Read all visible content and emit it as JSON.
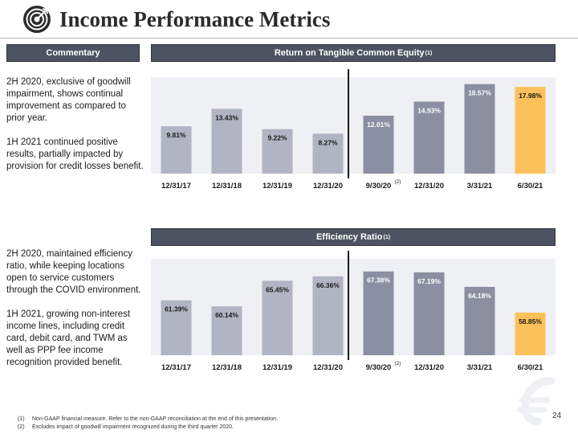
{
  "header": {
    "title": "Income Performance Metrics"
  },
  "commentary": {
    "label": "Commentary",
    "block1": [
      "2H 2020, exclusive of goodwill impairment, shows continual improvement as compared to prior year.",
      "1H 2021 continued positive results, partially impacted by provision for credit losses benefit."
    ],
    "block2": [
      "2H 2020, maintained efficiency ratio, while keeping locations open to service customers through the COVID environment.",
      "1H 2021, growing non-interest income lines, including credit card, debit card, and TWM as well as PPP fee income recognition provided benefit."
    ]
  },
  "colors": {
    "header_bg": "#4d5360",
    "bar_annual": "#b1b4c2",
    "bar_quarter": "#8b8fa1",
    "bar_highlight": "#fdc15c",
    "plot_bg": "#eef0f4",
    "divider": "#1a1a1a"
  },
  "chart_data": [
    {
      "type": "bar",
      "title": "Return on Tangible Common Equity",
      "title_sup": "(1)",
      "categories": [
        "12/31/17",
        "12/31/18",
        "12/31/19",
        "12/31/20",
        "9/30/20",
        "12/31/20",
        "3/31/21",
        "6/30/21"
      ],
      "category_sups": [
        "",
        "",
        "",
        "",
        "(2)",
        "",
        "",
        ""
      ],
      "values": [
        9.81,
        13.43,
        9.22,
        8.27,
        12.01,
        14.93,
        18.57,
        17.98
      ],
      "labels": [
        "9.81%",
        "13.43%",
        "9.22%",
        "8.27%",
        "12.01%",
        "14.93%",
        "18.57%",
        "17.98%"
      ],
      "ylim": [
        0,
        20
      ],
      "groups": [
        "annual",
        "annual",
        "annual",
        "annual",
        "quarter",
        "quarter",
        "quarter",
        "highlight"
      ]
    },
    {
      "type": "bar",
      "title": "Efficiency Ratio",
      "title_sup": "(1)",
      "categories": [
        "12/31/17",
        "12/31/18",
        "12/31/19",
        "12/31/20",
        "9/30/20",
        "12/31/20",
        "3/31/21",
        "6/30/21"
      ],
      "category_sups": [
        "",
        "",
        "",
        "",
        "(2)",
        "",
        "",
        ""
      ],
      "values": [
        61.39,
        60.14,
        65.45,
        66.36,
        67.38,
        67.19,
        64.18,
        58.85
      ],
      "labels": [
        "61.39%",
        "60.14%",
        "65.45%",
        "66.36%",
        "67.38%",
        "67.19%",
        "64.18%",
        "58.85%"
      ],
      "ylim": [
        50,
        70
      ],
      "groups": [
        "annual",
        "annual",
        "annual",
        "annual",
        "quarter",
        "quarter",
        "quarter",
        "highlight"
      ]
    }
  ],
  "footnotes": [
    {
      "num": "(1)",
      "text": "Non-GAAP financial measure.  Refer to the non-GAAP reconciliation at the end of this presentation."
    },
    {
      "num": "(2)",
      "text": "Excludes impact of goodwill impairment recognized during the third quarter 2020."
    }
  ],
  "page_number": "24"
}
